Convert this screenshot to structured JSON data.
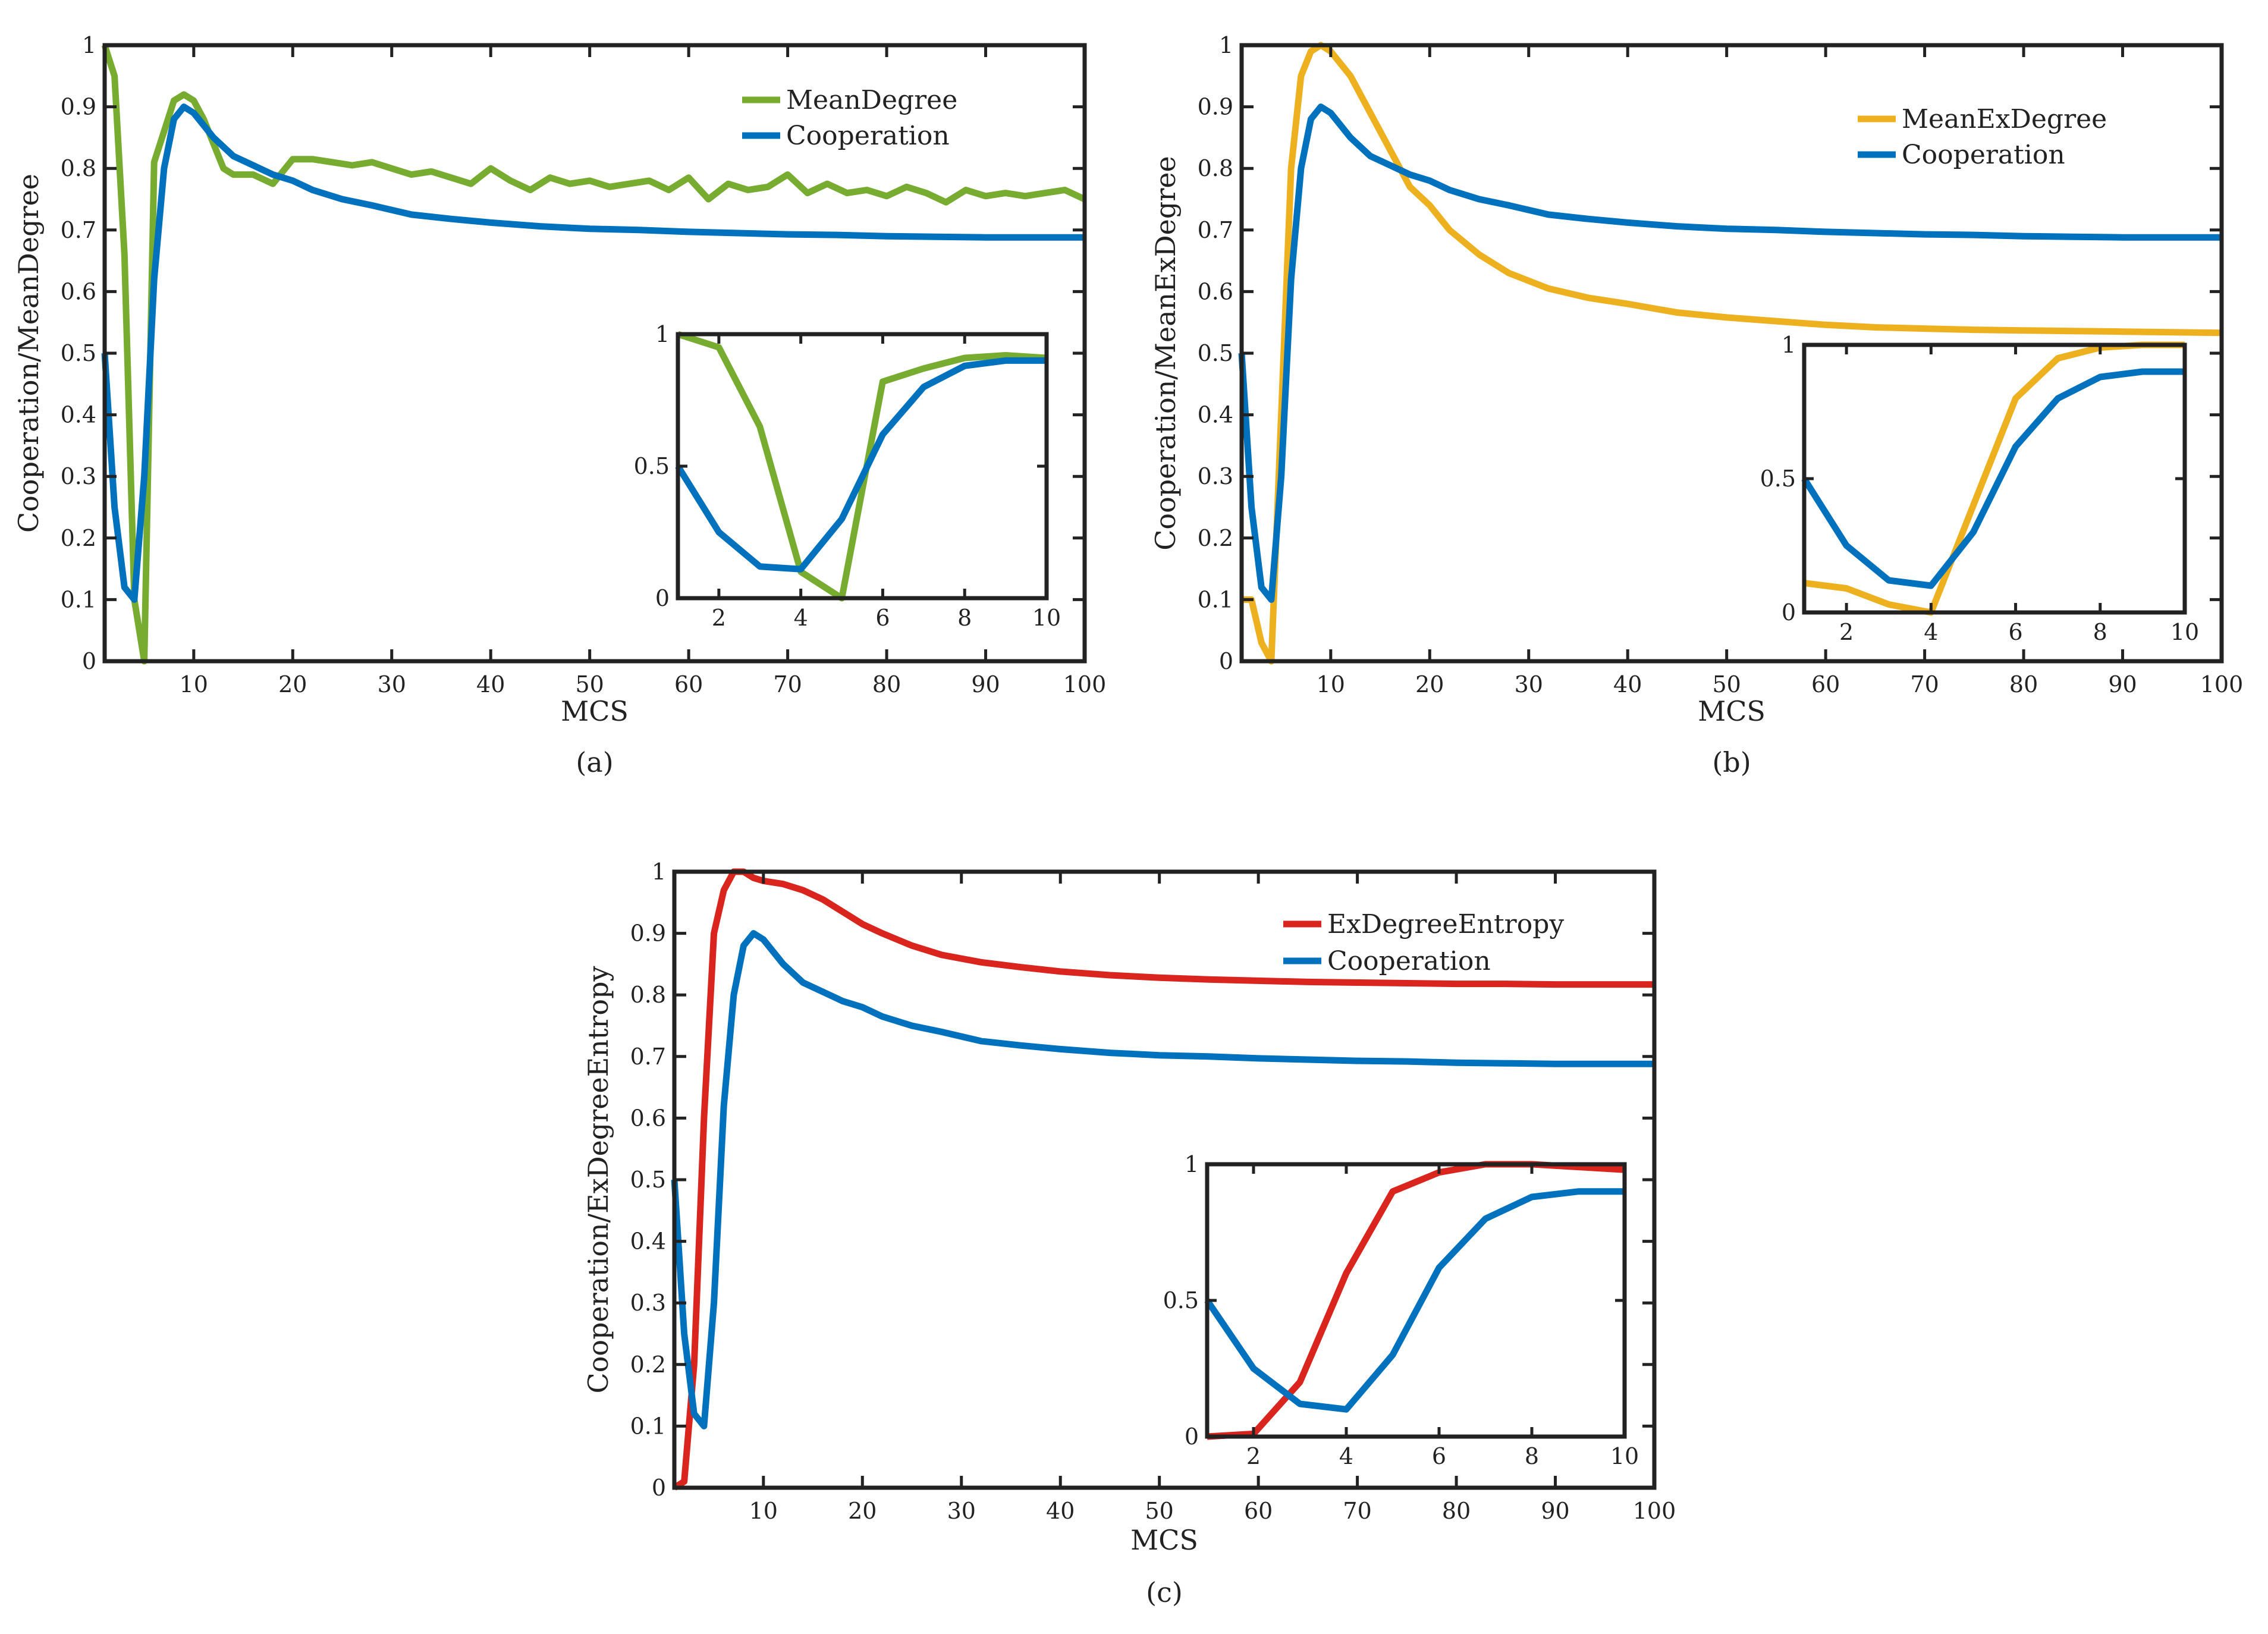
{
  "colors": {
    "green": "#77ac30",
    "blue": "#0072bd",
    "yellow": "#edb120",
    "red": "#d9251d",
    "axis": "#222222",
    "background": "#ffffff"
  },
  "chart_data": [
    {
      "id": "a",
      "type": "line",
      "caption": "(a)",
      "title": "",
      "xlabel": "MCS",
      "ylabel": "Cooperation/MeanDegree",
      "xlim": [
        1,
        100
      ],
      "ylim": [
        0,
        1
      ],
      "xticks": [
        10,
        20,
        30,
        40,
        50,
        60,
        70,
        80,
        90,
        100
      ],
      "yticks": [
        0,
        0.1,
        0.2,
        0.3,
        0.4,
        0.5,
        0.6,
        0.7,
        0.8,
        0.9,
        1
      ],
      "ytick_labels": [
        "0",
        "0.1",
        "0.2",
        "0.3",
        "0.4",
        "0.5",
        "0.6",
        "0.7",
        "0.8",
        "0.9",
        "1"
      ],
      "legend_position": "top-right",
      "series": [
        {
          "name": "MeanDegree",
          "color": "#77ac30",
          "x": [
            1,
            2,
            3,
            4,
            5,
            6,
            7,
            8,
            9,
            10,
            11,
            12,
            13,
            14,
            15,
            16,
            18,
            20,
            22,
            24,
            26,
            28,
            30,
            32,
            34,
            36,
            38,
            40,
            42,
            44,
            46,
            48,
            50,
            52,
            54,
            56,
            58,
            60,
            62,
            64,
            66,
            68,
            70,
            72,
            74,
            76,
            78,
            80,
            82,
            84,
            86,
            88,
            90,
            92,
            94,
            96,
            98,
            100
          ],
          "y": [
            1.0,
            0.95,
            0.66,
            0.1,
            0.0,
            0.81,
            0.86,
            0.91,
            0.92,
            0.91,
            0.88,
            0.84,
            0.8,
            0.79,
            0.79,
            0.79,
            0.775,
            0.815,
            0.815,
            0.81,
            0.805,
            0.81,
            0.8,
            0.79,
            0.795,
            0.785,
            0.775,
            0.8,
            0.78,
            0.765,
            0.785,
            0.775,
            0.78,
            0.77,
            0.775,
            0.78,
            0.765,
            0.785,
            0.75,
            0.775,
            0.765,
            0.77,
            0.79,
            0.76,
            0.775,
            0.76,
            0.765,
            0.755,
            0.77,
            0.76,
            0.745,
            0.765,
            0.755,
            0.76,
            0.755,
            0.76,
            0.765,
            0.75
          ]
        },
        {
          "name": "Cooperation",
          "color": "#0072bd",
          "x": [
            1,
            2,
            3,
            4,
            5,
            6,
            7,
            8,
            9,
            10,
            12,
            14,
            16,
            18,
            20,
            22,
            25,
            28,
            32,
            36,
            40,
            45,
            50,
            55,
            60,
            65,
            70,
            75,
            80,
            85,
            90,
            95,
            100
          ],
          "y": [
            0.5,
            0.25,
            0.12,
            0.1,
            0.3,
            0.62,
            0.8,
            0.88,
            0.9,
            0.89,
            0.85,
            0.82,
            0.805,
            0.79,
            0.78,
            0.765,
            0.75,
            0.74,
            0.725,
            0.718,
            0.712,
            0.706,
            0.702,
            0.7,
            0.697,
            0.695,
            0.693,
            0.692,
            0.69,
            0.689,
            0.688,
            0.688,
            0.688
          ]
        }
      ],
      "inset": {
        "xlim": [
          1,
          10
        ],
        "ylim": [
          0,
          1
        ],
        "xticks": [
          2,
          4,
          6,
          8,
          10
        ],
        "yticks": [
          0,
          0.5,
          1
        ],
        "ytick_labels": [
          "0",
          "0.5",
          "1"
        ],
        "series": [
          {
            "name": "MeanDegree",
            "color": "#77ac30",
            "x": [
              1,
              2,
              3,
              4,
              5,
              6,
              7,
              8,
              9,
              10
            ],
            "y": [
              1.0,
              0.95,
              0.65,
              0.1,
              0.0,
              0.82,
              0.87,
              0.91,
              0.92,
              0.91
            ]
          },
          {
            "name": "Cooperation",
            "color": "#0072bd",
            "x": [
              1,
              2,
              3,
              4,
              5,
              6,
              7,
              8,
              9,
              10
            ],
            "y": [
              0.5,
              0.25,
              0.12,
              0.11,
              0.3,
              0.62,
              0.8,
              0.88,
              0.9,
              0.9
            ]
          }
        ]
      }
    },
    {
      "id": "b",
      "type": "line",
      "caption": "(b)",
      "title": "",
      "xlabel": "MCS",
      "ylabel": "Cooperation/MeanExDegree",
      "xlim": [
        1,
        100
      ],
      "ylim": [
        0,
        1
      ],
      "xticks": [
        10,
        20,
        30,
        40,
        50,
        60,
        70,
        80,
        90,
        100
      ],
      "yticks": [
        0,
        0.1,
        0.2,
        0.3,
        0.4,
        0.5,
        0.6,
        0.7,
        0.8,
        0.9,
        1
      ],
      "ytick_labels": [
        "0",
        "0.1",
        "0.2",
        "0.3",
        "0.4",
        "0.5",
        "0.6",
        "0.7",
        "0.8",
        "0.9",
        "1"
      ],
      "legend_position": "top-right",
      "series": [
        {
          "name": "MeanExDegree",
          "color": "#edb120",
          "x": [
            1,
            2,
            3,
            4,
            5,
            6,
            7,
            8,
            9,
            10,
            12,
            14,
            16,
            18,
            20,
            22,
            25,
            28,
            32,
            36,
            40,
            45,
            50,
            55,
            60,
            65,
            70,
            75,
            80,
            85,
            90,
            95,
            100
          ],
          "y": [
            0.1,
            0.1,
            0.03,
            0.0,
            0.4,
            0.8,
            0.95,
            0.99,
            1.0,
            0.99,
            0.95,
            0.89,
            0.83,
            0.77,
            0.74,
            0.7,
            0.66,
            0.63,
            0.605,
            0.59,
            0.58,
            0.566,
            0.558,
            0.552,
            0.546,
            0.542,
            0.54,
            0.538,
            0.537,
            0.536,
            0.535,
            0.534,
            0.533
          ]
        },
        {
          "name": "Cooperation",
          "color": "#0072bd",
          "x": [
            1,
            2,
            3,
            4,
            5,
            6,
            7,
            8,
            9,
            10,
            12,
            14,
            16,
            18,
            20,
            22,
            25,
            28,
            32,
            36,
            40,
            45,
            50,
            55,
            60,
            65,
            70,
            75,
            80,
            85,
            90,
            95,
            100
          ],
          "y": [
            0.5,
            0.25,
            0.12,
            0.1,
            0.3,
            0.62,
            0.8,
            0.88,
            0.9,
            0.89,
            0.85,
            0.82,
            0.805,
            0.79,
            0.78,
            0.765,
            0.75,
            0.74,
            0.725,
            0.718,
            0.712,
            0.706,
            0.702,
            0.7,
            0.697,
            0.695,
            0.693,
            0.692,
            0.69,
            0.689,
            0.688,
            0.688,
            0.688
          ]
        }
      ],
      "inset": {
        "xlim": [
          1,
          10
        ],
        "ylim": [
          0,
          1
        ],
        "xticks": [
          2,
          4,
          6,
          8,
          10
        ],
        "yticks": [
          0,
          0.5,
          1
        ],
        "ytick_labels": [
          "0",
          "0.5",
          "1"
        ],
        "series": [
          {
            "name": "MeanExDegree",
            "color": "#edb120",
            "x": [
              1,
              2,
              3,
              4,
              5,
              6,
              7,
              8,
              9,
              10
            ],
            "y": [
              0.11,
              0.09,
              0.03,
              0.0,
              0.4,
              0.8,
              0.95,
              0.99,
              1.0,
              1.0
            ]
          },
          {
            "name": "Cooperation",
            "color": "#0072bd",
            "x": [
              1,
              2,
              3,
              4,
              5,
              6,
              7,
              8,
              9,
              10
            ],
            "y": [
              0.5,
              0.25,
              0.12,
              0.1,
              0.3,
              0.62,
              0.8,
              0.88,
              0.9,
              0.9
            ]
          }
        ]
      }
    },
    {
      "id": "c",
      "type": "line",
      "caption": "(c)",
      "title": "",
      "xlabel": "MCS",
      "ylabel": "Cooperation/ExDegreeEntropy",
      "xlim": [
        1,
        100
      ],
      "ylim": [
        0,
        1
      ],
      "xticks": [
        10,
        20,
        30,
        40,
        50,
        60,
        70,
        80,
        90,
        100
      ],
      "yticks": [
        0,
        0.1,
        0.2,
        0.3,
        0.4,
        0.5,
        0.6,
        0.7,
        0.8,
        0.9,
        1
      ],
      "ytick_labels": [
        "0",
        "0.1",
        "0.2",
        "0.3",
        "0.4",
        "0.5",
        "0.6",
        "0.7",
        "0.8",
        "0.9",
        "1"
      ],
      "legend_position": "top-right",
      "series": [
        {
          "name": "ExDegreeEntropy",
          "color": "#d9251d",
          "x": [
            1,
            2,
            3,
            4,
            5,
            6,
            7,
            8,
            9,
            10,
            12,
            14,
            16,
            18,
            20,
            22,
            25,
            28,
            32,
            36,
            40,
            45,
            50,
            55,
            60,
            65,
            70,
            75,
            80,
            85,
            90,
            95,
            100
          ],
          "y": [
            0.0,
            0.01,
            0.2,
            0.6,
            0.9,
            0.97,
            1.0,
            1.0,
            0.99,
            0.985,
            0.98,
            0.97,
            0.955,
            0.935,
            0.915,
            0.9,
            0.88,
            0.865,
            0.853,
            0.845,
            0.838,
            0.832,
            0.828,
            0.825,
            0.823,
            0.821,
            0.82,
            0.819,
            0.818,
            0.818,
            0.817,
            0.817,
            0.817
          ]
        },
        {
          "name": "Cooperation",
          "color": "#0072bd",
          "x": [
            1,
            2,
            3,
            4,
            5,
            6,
            7,
            8,
            9,
            10,
            12,
            14,
            16,
            18,
            20,
            22,
            25,
            28,
            32,
            36,
            40,
            45,
            50,
            55,
            60,
            65,
            70,
            75,
            80,
            85,
            90,
            95,
            100
          ],
          "y": [
            0.5,
            0.25,
            0.12,
            0.1,
            0.3,
            0.62,
            0.8,
            0.88,
            0.9,
            0.89,
            0.85,
            0.82,
            0.805,
            0.79,
            0.78,
            0.765,
            0.75,
            0.74,
            0.725,
            0.718,
            0.712,
            0.706,
            0.702,
            0.7,
            0.697,
            0.695,
            0.693,
            0.692,
            0.69,
            0.689,
            0.688,
            0.688,
            0.688
          ]
        }
      ],
      "inset": {
        "xlim": [
          1,
          10
        ],
        "ylim": [
          0,
          1
        ],
        "xticks": [
          2,
          4,
          6,
          8,
          10
        ],
        "yticks": [
          0,
          0.5,
          1
        ],
        "ytick_labels": [
          "0",
          "0.5",
          "1"
        ],
        "series": [
          {
            "name": "ExDegreeEntropy",
            "color": "#d9251d",
            "x": [
              1,
              2,
              3,
              4,
              5,
              6,
              7,
              8,
              9,
              10
            ],
            "y": [
              0.0,
              0.01,
              0.2,
              0.6,
              0.9,
              0.97,
              1.0,
              1.0,
              0.99,
              0.98
            ]
          },
          {
            "name": "Cooperation",
            "color": "#0072bd",
            "x": [
              1,
              2,
              3,
              4,
              5,
              6,
              7,
              8,
              9,
              10
            ],
            "y": [
              0.5,
              0.25,
              0.12,
              0.1,
              0.3,
              0.62,
              0.8,
              0.88,
              0.9,
              0.9
            ]
          }
        ]
      }
    }
  ]
}
